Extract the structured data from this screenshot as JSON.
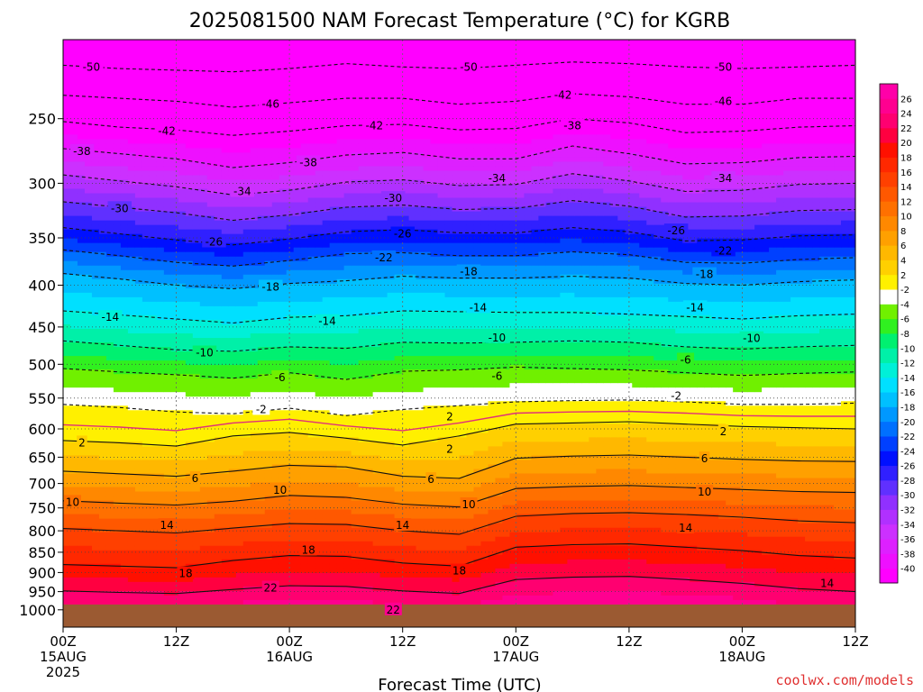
{
  "chart_data": {
    "type": "heatmap",
    "title": "2025081500 NAM Forecast Temperature (°C) for KGRB",
    "xlabel": "Forecast Time (UTC)",
    "ylabel": "",
    "ylog": true,
    "yreverse": true,
    "ylim": [
      1050,
      200
    ],
    "xlim": [
      0,
      84
    ],
    "yticks": [
      250,
      300,
      350,
      400,
      450,
      500,
      550,
      600,
      650,
      700,
      750,
      800,
      850,
      900,
      950,
      1000
    ],
    "xticks": [
      {
        "hour": 0,
        "lines": [
          "00Z",
          "15AUG",
          "2025"
        ]
      },
      {
        "hour": 12,
        "lines": [
          "12Z"
        ]
      },
      {
        "hour": 24,
        "lines": [
          "00Z",
          "16AUG"
        ]
      },
      {
        "hour": 36,
        "lines": [
          "12Z"
        ]
      },
      {
        "hour": 48,
        "lines": [
          "00Z",
          "17AUG"
        ]
      },
      {
        "hour": 60,
        "lines": [
          "12Z"
        ]
      },
      {
        "hour": 72,
        "lines": [
          "00Z",
          "18AUG"
        ]
      },
      {
        "hour": 84,
        "lines": [
          "12Z"
        ]
      }
    ],
    "ground_pressure": 985,
    "ground_color": "#9b5a32",
    "hours": [
      0,
      6,
      12,
      18,
      24,
      30,
      36,
      42,
      48,
      54,
      60,
      66,
      72,
      78,
      84
    ],
    "isotherms": [
      {
        "value": -50,
        "pressure": [
          215,
          217,
          218,
          219,
          217,
          214,
          216,
          217,
          215,
          213,
          214,
          216,
          217,
          216,
          215
        ]
      },
      {
        "value": -46,
        "pressure": [
          234,
          236,
          238,
          242,
          239,
          236,
          236,
          240,
          238,
          233,
          235,
          240,
          240,
          236,
          236
        ]
      },
      {
        "value": -42,
        "pressure": [
          252,
          256,
          258,
          262,
          259,
          255,
          254,
          258,
          257,
          250,
          253,
          260,
          259,
          256,
          255
        ]
      },
      {
        "value": -38,
        "pressure": [
          272,
          276,
          280,
          287,
          283,
          277,
          275,
          280,
          280,
          270,
          276,
          284,
          283,
          279,
          278
        ]
      },
      {
        "value": -34,
        "pressure": [
          293,
          298,
          303,
          310,
          306,
          299,
          297,
          302,
          301,
          292,
          298,
          307,
          306,
          301,
          300
        ]
      },
      {
        "value": -30,
        "pressure": [
          316,
          321,
          326,
          333,
          328,
          321,
          319,
          323,
          322,
          315,
          320,
          330,
          329,
          324,
          323
        ]
      },
      {
        "value": -26,
        "pressure": [
          340,
          346,
          352,
          357,
          351,
          344,
          342,
          345,
          345,
          340,
          344,
          353,
          352,
          348,
          347
        ]
      },
      {
        "value": -22,
        "pressure": [
          362,
          368,
          375,
          379,
          373,
          366,
          365,
          368,
          368,
          364,
          367,
          375,
          376,
          372,
          370
        ]
      },
      {
        "value": -18,
        "pressure": [
          387,
          393,
          400,
          404,
          398,
          395,
          390,
          392,
          392,
          390,
          392,
          398,
          400,
          396,
          394
        ]
      },
      {
        "value": -14,
        "pressure": [
          430,
          435,
          440,
          445,
          438,
          436,
          430,
          431,
          432,
          432,
          434,
          437,
          440,
          436,
          434
        ]
      },
      {
        "value": -10,
        "pressure": [
          468,
          474,
          480,
          482,
          476,
          478,
          470,
          471,
          470,
          468,
          470,
          476,
          479,
          476,
          474
        ]
      },
      {
        "value": -6,
        "pressure": [
          506,
          511,
          515,
          520,
          512,
          522,
          510,
          508,
          504,
          506,
          508,
          512,
          516,
          513,
          511
        ]
      },
      {
        "value": -2,
        "pressure": [
          560,
          565,
          572,
          575,
          566,
          578,
          568,
          562,
          556,
          554,
          553,
          556,
          560,
          560,
          558
        ]
      },
      {
        "value": 2,
        "pressure": [
          620,
          624,
          630,
          612,
          606,
          616,
          628,
          612,
          592,
          590,
          588,
          592,
          596,
          598,
          600
        ]
      },
      {
        "value": 6,
        "pressure": [
          676,
          681,
          686,
          676,
          665,
          668,
          686,
          690,
          652,
          648,
          646,
          650,
          654,
          657,
          658
        ]
      },
      {
        "value": 10,
        "pressure": [
          735,
          740,
          744,
          736,
          724,
          728,
          742,
          748,
          710,
          706,
          704,
          708,
          712,
          716,
          718
        ]
      },
      {
        "value": 14,
        "pressure": [
          795,
          800,
          805,
          794,
          784,
          786,
          800,
          808,
          768,
          762,
          760,
          764,
          770,
          778,
          782
        ]
      },
      {
        "value": 18,
        "pressure": [
          880,
          884,
          888,
          870,
          858,
          860,
          876,
          884,
          838,
          832,
          830,
          838,
          846,
          858,
          864
        ]
      },
      {
        "value": 22,
        "pressure": [
          948,
          952,
          955,
          944,
          934,
          936,
          948,
          955,
          918,
          912,
          910,
          918,
          928,
          942,
          950
        ]
      }
    ],
    "freezing_line": {
      "value": 0,
      "color": "#e0307a",
      "pressure": [
        593,
        597,
        603,
        590,
        584,
        595,
        603,
        590,
        574,
        572,
        571,
        574,
        578,
        579,
        579
      ]
    },
    "dashed_below": 0,
    "contour_labels": [
      {
        "text": "-50",
        "hour": 3,
        "pressure": 216
      },
      {
        "text": "-50",
        "hour": 43,
        "pressure": 216
      },
      {
        "text": "-50",
        "hour": 70,
        "pressure": 216
      },
      {
        "text": "-46",
        "hour": 22,
        "pressure": 240
      },
      {
        "text": "-46",
        "hour": 70,
        "pressure": 238
      },
      {
        "text": "-42",
        "hour": 11,
        "pressure": 259
      },
      {
        "text": "-42",
        "hour": 33,
        "pressure": 255
      },
      {
        "text": "-42",
        "hour": 53,
        "pressure": 234
      },
      {
        "text": "-38",
        "hour": 2,
        "pressure": 274
      },
      {
        "text": "-38",
        "hour": 26,
        "pressure": 283
      },
      {
        "text": "-38",
        "hour": 54,
        "pressure": 255
      },
      {
        "text": "-34",
        "hour": 19,
        "pressure": 307
      },
      {
        "text": "-34",
        "hour": 46,
        "pressure": 296
      },
      {
        "text": "-34",
        "hour": 70,
        "pressure": 296
      },
      {
        "text": "-30",
        "hour": 6,
        "pressure": 322
      },
      {
        "text": "-30",
        "hour": 35,
        "pressure": 313
      },
      {
        "text": "-26",
        "hour": 16,
        "pressure": 354
      },
      {
        "text": "-26",
        "hour": 36,
        "pressure": 346
      },
      {
        "text": "-26",
        "hour": 65,
        "pressure": 343
      },
      {
        "text": "-22",
        "hour": 34,
        "pressure": 370
      },
      {
        "text": "-22",
        "hour": 70,
        "pressure": 363
      },
      {
        "text": "-18",
        "hour": 22,
        "pressure": 402
      },
      {
        "text": "-18",
        "hour": 43,
        "pressure": 385
      },
      {
        "text": "-18",
        "hour": 68,
        "pressure": 388
      },
      {
        "text": "-14",
        "hour": 5,
        "pressure": 438
      },
      {
        "text": "-14",
        "hour": 28,
        "pressure": 443
      },
      {
        "text": "-14",
        "hour": 44,
        "pressure": 426
      },
      {
        "text": "-14",
        "hour": 67,
        "pressure": 426
      },
      {
        "text": "-10",
        "hour": 15,
        "pressure": 484
      },
      {
        "text": "-10",
        "hour": 46,
        "pressure": 464
      },
      {
        "text": "-10",
        "hour": 73,
        "pressure": 465
      },
      {
        "text": "-6",
        "hour": 23,
        "pressure": 519
      },
      {
        "text": "-6",
        "hour": 46,
        "pressure": 517
      },
      {
        "text": "-6",
        "hour": 66,
        "pressure": 494
      },
      {
        "text": "-2",
        "hour": 21,
        "pressure": 568
      },
      {
        "text": "-2",
        "hour": 65,
        "pressure": 547
      },
      {
        "text": "2",
        "hour": 2,
        "pressure": 624
      },
      {
        "text": "2",
        "hour": 41,
        "pressure": 580
      },
      {
        "text": "2",
        "hour": 41,
        "pressure": 635
      },
      {
        "text": "2",
        "hour": 70,
        "pressure": 605
      },
      {
        "text": "6",
        "hour": 14,
        "pressure": 690
      },
      {
        "text": "6",
        "hour": 39,
        "pressure": 692
      },
      {
        "text": "6",
        "hour": 68,
        "pressure": 653
      },
      {
        "text": "10",
        "hour": 1,
        "pressure": 738
      },
      {
        "text": "10",
        "hour": 23,
        "pressure": 713
      },
      {
        "text": "10",
        "hour": 43,
        "pressure": 743
      },
      {
        "text": "10",
        "hour": 68,
        "pressure": 717
      },
      {
        "text": "14",
        "hour": 11,
        "pressure": 788
      },
      {
        "text": "14",
        "hour": 36,
        "pressure": 788
      },
      {
        "text": "14",
        "hour": 66,
        "pressure": 794
      },
      {
        "text": "14",
        "hour": 81,
        "pressure": 928
      },
      {
        "text": "18",
        "hour": 26,
        "pressure": 845
      },
      {
        "text": "18",
        "hour": 13,
        "pressure": 903
      },
      {
        "text": "18",
        "hour": 42,
        "pressure": 896
      },
      {
        "text": "22",
        "hour": 22,
        "pressure": 940
      },
      {
        "text": "22",
        "hour": 35,
        "pressure": 1000
      }
    ],
    "colorbar": {
      "levels": [
        -40,
        -38,
        -36,
        -34,
        -32,
        -30,
        -28,
        -26,
        -24,
        -22,
        -20,
        -18,
        -16,
        -14,
        -12,
        -10,
        -8,
        -6,
        -4,
        -2,
        2,
        4,
        6,
        8,
        10,
        12,
        14,
        16,
        18,
        20,
        22,
        24,
        26
      ],
      "labels": [
        "-40",
        "-38",
        "-36",
        "-34",
        "-32",
        "-30",
        "-28",
        "-26",
        "-24",
        "-22",
        "-20",
        "-18",
        "-16",
        "-14",
        "-12",
        "-10",
        "-8",
        "-6",
        "-4",
        "-2",
        "2",
        "4",
        "6",
        "8",
        "10",
        "12",
        "14",
        "16",
        "18",
        "20",
        "22",
        "24",
        "26"
      ],
      "colors": [
        "#ff00ff",
        "#ee10ff",
        "#dd20ff",
        "#cc30ff",
        "#b030ff",
        "#9030ff",
        "#6030ff",
        "#3020ff",
        "#0010ff",
        "#0040ff",
        "#0070ff",
        "#0098ff",
        "#00c0ff",
        "#00e0ff",
        "#00f0d8",
        "#00f0a8",
        "#00f070",
        "#30f020",
        "#70f000",
        "#ffffff",
        "#fff000",
        "#ffd000",
        "#ffb800",
        "#ffa000",
        "#ff8800",
        "#ff7000",
        "#ff5800",
        "#ff4000",
        "#ff2800",
        "#ff1000",
        "#ff0040",
        "#ff0070",
        "#ff0090",
        "#ff00a8"
      ]
    },
    "credit": "coolwx.com/models"
  }
}
